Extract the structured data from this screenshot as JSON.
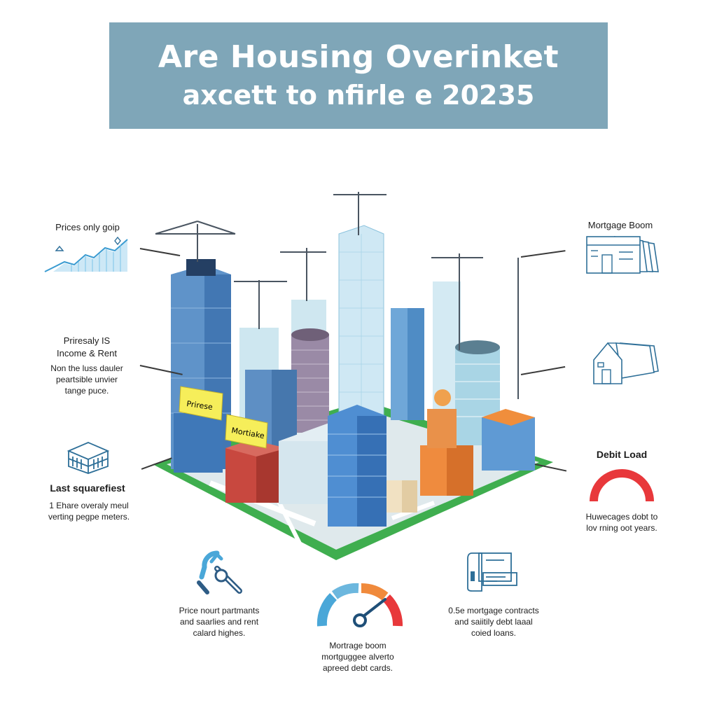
{
  "header": {
    "title_line1": "Are Housing Overinket",
    "title_line2": "axcett to nfirle e 20235",
    "bg_color": "#7fa6b8"
  },
  "left": {
    "prices": {
      "title": "Prices only goip",
      "icon": "line-chart-icon"
    },
    "income": {
      "title_line1": "Priresaly IS",
      "title_line2": "Income & Rent",
      "desc_line1": "Non the luss dauler",
      "desc_line2": "peartsible unvier",
      "desc_line3": "tange puce."
    },
    "square": {
      "title": "Last squarefiest",
      "desc_line1": "1 Ehare overaly meul",
      "desc_line2": "verting pegpe meters.",
      "icon": "building-icon"
    }
  },
  "right": {
    "mortgage": {
      "title": "Mortgage Boom",
      "icon": "bank-stack-icon"
    },
    "house": {
      "icon": "house-icon"
    },
    "debt": {
      "title": "Debit Load",
      "desc_line1": "Huwecages dobt to",
      "desc_line2": "lov rning oot years.",
      "icon": "debt-gauge-icon",
      "color": "#e8383b"
    }
  },
  "bottom": {
    "left": {
      "desc_line1": "Price nourt partmants",
      "desc_line2": "and saarlies and rent",
      "desc_line3": "calard highes.",
      "icon": "tools-icon"
    },
    "center": {
      "title": "Mortrage boom",
      "desc_line1": "mortguggee alverto",
      "desc_line2": "apreed debt cards.",
      "icon": "speedometer-icon"
    },
    "right": {
      "desc_line1": "0.5e mortgage contracts",
      "desc_line2": "and saiitily debt laaal",
      "desc_line3": "coied loans.",
      "icon": "document-card-icon"
    }
  },
  "city": {
    "sign1": "Prirese",
    "sign2": "Mortiake",
    "ground_color": "#3fae4f",
    "sign_color": "#f6ee5a"
  }
}
